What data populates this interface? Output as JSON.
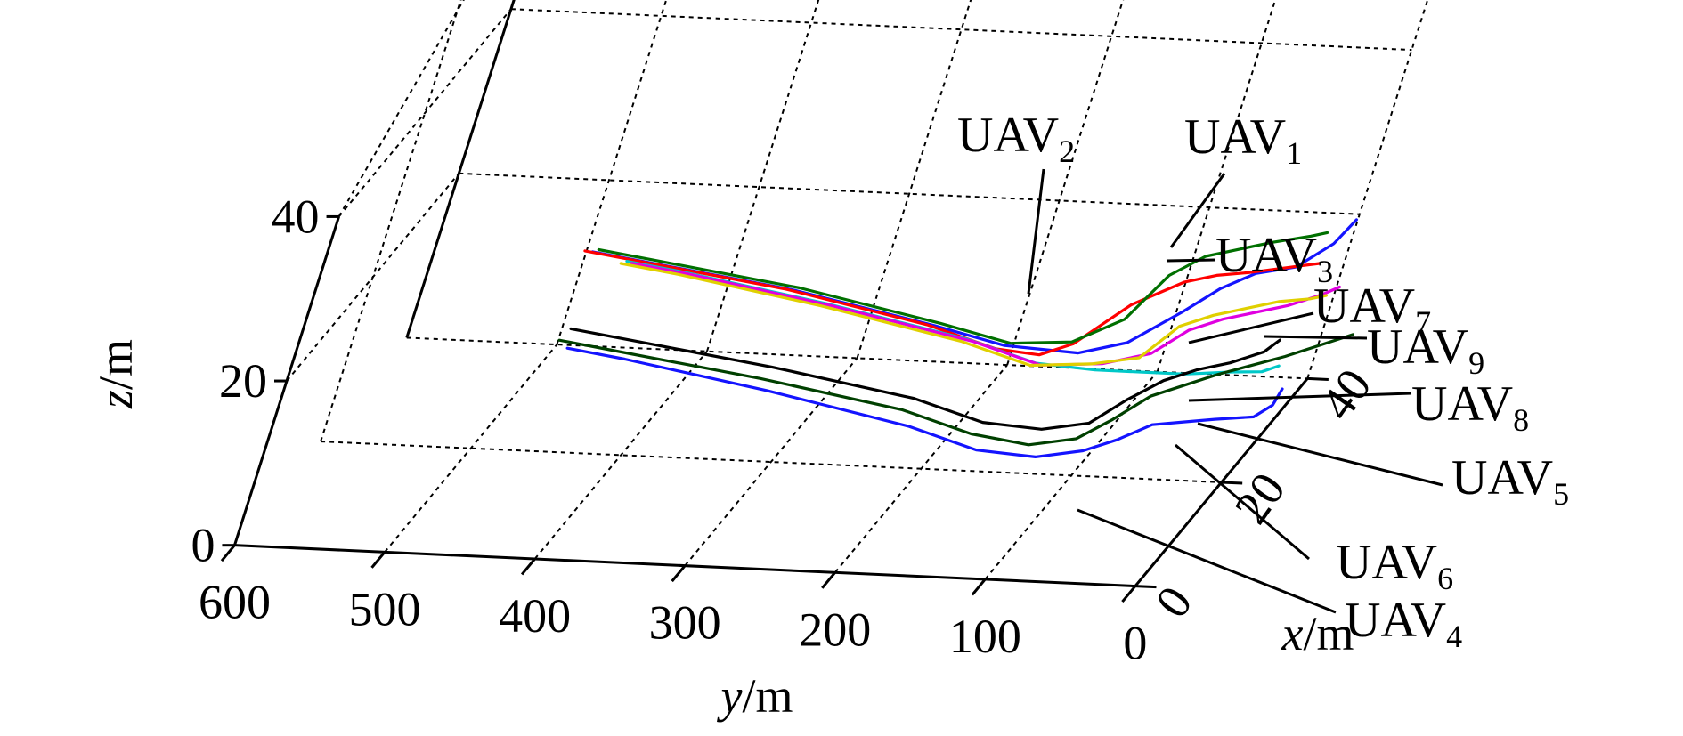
{
  "chart_data": {
    "type": "line",
    "projection": "3d",
    "xlabel_var": "x",
    "xlabel_unit": "/m",
    "ylabel_var": "y",
    "ylabel_unit": "/m",
    "zlabel_var": "z",
    "zlabel_unit": "/m",
    "xlim": [
      0,
      40
    ],
    "ylim": [
      0,
      600
    ],
    "zlim": [
      0,
      40
    ],
    "x_ticks": [
      0,
      20,
      40
    ],
    "y_ticks": [
      600,
      500,
      400,
      300,
      200,
      100,
      0
    ],
    "z_ticks": [
      0,
      20,
      40
    ],
    "grid": true,
    "series": [
      {
        "name": "UAV",
        "sub": "1",
        "color": "#1414ff",
        "points": [
          [
            8,
            440,
            32
          ],
          [
            8,
            400,
            31
          ],
          [
            8,
            300,
            28.5
          ],
          [
            8,
            200,
            25
          ],
          [
            8,
            150,
            23
          ],
          [
            8,
            100,
            22.5
          ],
          [
            8,
            70,
            24
          ],
          [
            8,
            40,
            28
          ],
          [
            8,
            20,
            31
          ],
          [
            8,
            0,
            33
          ],
          [
            8,
            -25,
            34
          ],
          [
            8,
            -45,
            37
          ],
          [
            8,
            -55,
            40
          ]
        ]
      },
      {
        "name": "UAV",
        "sub": "2",
        "color": "#ff0000",
        "points": [
          [
            5,
            440,
            34
          ],
          [
            5,
            400,
            33
          ],
          [
            5,
            300,
            30.5
          ],
          [
            5,
            200,
            27
          ],
          [
            5,
            150,
            24.5
          ],
          [
            5,
            120,
            24
          ],
          [
            5,
            100,
            25.5
          ],
          [
            5,
            70,
            30.5
          ],
          [
            5,
            40,
            33.5
          ],
          [
            5,
            20,
            34.5
          ],
          [
            5,
            0,
            35
          ],
          [
            5,
            -30,
            36
          ],
          [
            5,
            -45,
            36.5
          ]
        ]
      },
      {
        "name": "UAV",
        "sub": "3",
        "color": "#007000",
        "points": [
          [
            10,
            440,
            31
          ],
          [
            10,
            400,
            30
          ],
          [
            10,
            300,
            27.5
          ],
          [
            10,
            200,
            24
          ],
          [
            10,
            150,
            22
          ],
          [
            10,
            110,
            22.5
          ],
          [
            10,
            80,
            25.5
          ],
          [
            10,
            60,
            31
          ],
          [
            10,
            40,
            33.5
          ],
          [
            10,
            20,
            34.5
          ],
          [
            10,
            0,
            35.5
          ],
          [
            10,
            -25,
            36.5
          ],
          [
            10,
            -35,
            37
          ]
        ]
      },
      {
        "name": "UAV",
        "sub": "4",
        "color": "#00c8c8",
        "points": [
          [
            22,
            440,
            22
          ],
          [
            22,
            400,
            21
          ],
          [
            22,
            300,
            18
          ],
          [
            22,
            200,
            14.5
          ],
          [
            22,
            150,
            12
          ],
          [
            22,
            110,
            11.5
          ],
          [
            22,
            80,
            11.5
          ],
          [
            22,
            50,
            11.5
          ],
          [
            22,
            20,
            12
          ],
          [
            22,
            0,
            12.2
          ],
          [
            22,
            -10,
            13
          ]
        ]
      },
      {
        "name": "UAV",
        "sub": "5",
        "color": "#e000e0",
        "points": [
          [
            24,
            440,
            20.5
          ],
          [
            24,
            400,
            19.5
          ],
          [
            24,
            300,
            16.5
          ],
          [
            24,
            200,
            13
          ],
          [
            24,
            150,
            10.5
          ],
          [
            24,
            110,
            11
          ],
          [
            24,
            80,
            12.5
          ],
          [
            24,
            60,
            15.5
          ],
          [
            24,
            40,
            17
          ],
          [
            24,
            20,
            18
          ],
          [
            24,
            0,
            19
          ],
          [
            24,
            -20,
            20.5
          ],
          [
            24,
            -30,
            21.5
          ]
        ]
      },
      {
        "name": "UAV",
        "sub": "6",
        "color": "#e0d000",
        "points": [
          [
            20,
            440,
            23
          ],
          [
            20,
            400,
            22
          ],
          [
            20,
            300,
            19
          ],
          [
            20,
            200,
            15.5
          ],
          [
            20,
            150,
            13
          ],
          [
            20,
            110,
            13.5
          ],
          [
            20,
            80,
            14.5
          ],
          [
            20,
            60,
            18.5
          ],
          [
            20,
            40,
            20
          ],
          [
            20,
            20,
            21
          ],
          [
            20,
            0,
            22
          ],
          [
            20,
            -20,
            22.5
          ],
          [
            20,
            -30,
            23
          ]
        ]
      },
      {
        "name": "UAV",
        "sub": "7",
        "color": "#000000",
        "points": [
          [
            9,
            440,
            22
          ],
          [
            9,
            400,
            21
          ],
          [
            9,
            300,
            18.5
          ],
          [
            9,
            200,
            15.5
          ],
          [
            9,
            150,
            13
          ],
          [
            9,
            110,
            12.5
          ],
          [
            9,
            80,
            13.5
          ],
          [
            9,
            60,
            16.5
          ],
          [
            9,
            40,
            19
          ],
          [
            9,
            20,
            20.5
          ],
          [
            9,
            0,
            21.5
          ],
          [
            9,
            -20,
            23
          ],
          [
            9,
            -28,
            24.5
          ]
        ]
      },
      {
        "name": "UAV",
        "sub": "8",
        "color": "#1414ff",
        "points": [
          [
            10,
            440,
            19
          ],
          [
            10,
            400,
            18
          ],
          [
            10,
            300,
            15
          ],
          [
            10,
            200,
            11.5
          ],
          [
            10,
            150,
            9
          ],
          [
            10,
            110,
            8.5
          ],
          [
            10,
            80,
            9.5
          ],
          [
            10,
            60,
            11
          ],
          [
            10,
            40,
            13
          ],
          [
            10,
            20,
            13.5
          ],
          [
            10,
            0,
            14
          ],
          [
            10,
            -25,
            14.5
          ],
          [
            10,
            -35,
            16
          ],
          [
            10,
            -38,
            18
          ]
        ]
      },
      {
        "name": "UAV",
        "sub": "9",
        "color": "#004000",
        "points": [
          [
            6,
            440,
            22.5
          ],
          [
            6,
            400,
            21.5
          ],
          [
            6,
            300,
            19
          ],
          [
            6,
            200,
            16
          ],
          [
            6,
            150,
            13.5
          ],
          [
            6,
            110,
            12.5
          ],
          [
            6,
            80,
            13.5
          ],
          [
            6,
            60,
            16
          ],
          [
            6,
            40,
            19
          ],
          [
            6,
            20,
            20.5
          ],
          [
            6,
            0,
            22
          ],
          [
            6,
            -40,
            24.5
          ],
          [
            6,
            -80,
            27.5
          ]
        ]
      }
    ]
  }
}
